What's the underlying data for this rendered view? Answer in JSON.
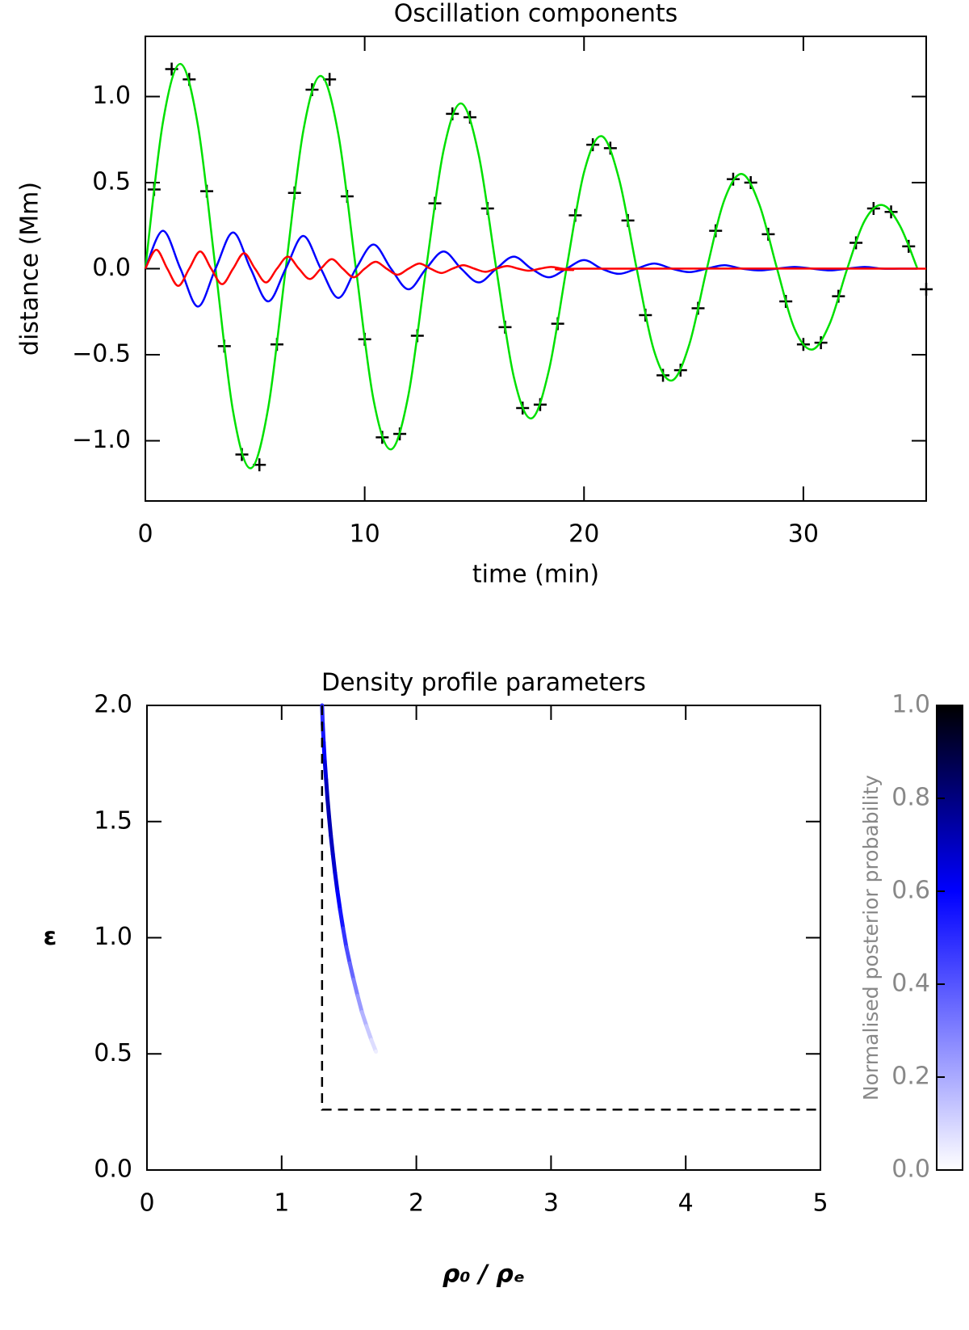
{
  "chart_data": [
    {
      "type": "line",
      "title": "Oscillation components",
      "xlabel": "time (min)",
      "ylabel": "distance (Mm)",
      "xlim": [
        0,
        35.6
      ],
      "ylim": [
        -1.35,
        1.35
      ],
      "xticks": [
        0,
        10,
        20,
        30
      ],
      "yticks": [
        {
          "value": -1.0,
          "label": "−1.0"
        },
        {
          "value": -0.5,
          "label": "−0.5"
        },
        {
          "value": 0,
          "label": "0.0"
        },
        {
          "value": 0.5,
          "label": "0.5"
        },
        {
          "value": 1.0,
          "label": "1.0"
        }
      ],
      "series": [
        {
          "type": "scatter",
          "marker": "+",
          "color": "#000000",
          "x": [
            0.4,
            1.2,
            2.0,
            2.8,
            3.6,
            4.4,
            5.2,
            6.0,
            6.8,
            7.6,
            8.4,
            9.2,
            10.0,
            10.8,
            11.6,
            12.4,
            13.2,
            14.0,
            14.8,
            15.6,
            16.4,
            17.2,
            18.0,
            18.8,
            19.6,
            20.4,
            21.2,
            22.0,
            22.8,
            23.6,
            24.4,
            25.2,
            26.0,
            26.8,
            27.6,
            28.4,
            29.2,
            30.0,
            30.8,
            31.6,
            32.4,
            33.2,
            34.0,
            34.8,
            35.6
          ],
          "values": [
            0.46,
            1.16,
            1.1,
            0.45,
            -0.45,
            -1.08,
            -1.14,
            -0.44,
            0.44,
            1.04,
            1.1,
            0.42,
            -0.41,
            -0.98,
            -0.96,
            -0.39,
            0.38,
            0.9,
            0.88,
            0.35,
            -0.34,
            -0.81,
            -0.79,
            -0.32,
            0.31,
            0.72,
            0.7,
            0.28,
            -0.27,
            -0.62,
            -0.59,
            -0.23,
            0.22,
            0.52,
            0.5,
            0.2,
            -0.19,
            -0.44,
            -0.43,
            -0.16,
            0.15,
            0.35,
            0.33,
            0.13,
            -0.12
          ]
        },
        {
          "type": "line",
          "color": "#00e000",
          "x": [
            0,
            0.8,
            1.6,
            2.4,
            3.2,
            4,
            4.8,
            5.6,
            6.4,
            7.2,
            8,
            8.8,
            9.6,
            10.4,
            11.2,
            12,
            12.8,
            13.6,
            14.4,
            15.2,
            16,
            16.8,
            17.6,
            18.4,
            19.2,
            20,
            20.8,
            21.6,
            22.4,
            23.2,
            24,
            24.8,
            25.6,
            26.4,
            27.2,
            28,
            28.8,
            29.6,
            30.4,
            31.2,
            32,
            32.8,
            33.6,
            34.4,
            35.2
          ],
          "values": [
            0,
            0.85,
            1.19,
            0.83,
            0,
            -0.83,
            -1.16,
            -0.81,
            0,
            0.8,
            1.12,
            0.78,
            0,
            -0.76,
            -1.05,
            -0.73,
            0,
            0.69,
            0.96,
            0.66,
            0,
            -0.63,
            -0.87,
            -0.59,
            0,
            0.56,
            0.77,
            0.52,
            0,
            -0.48,
            -0.65,
            -0.44,
            0,
            0.4,
            0.55,
            0.37,
            0,
            -0.35,
            -0.47,
            -0.32,
            0,
            0.28,
            0.37,
            0.25,
            0
          ]
        },
        {
          "type": "line",
          "color": "#0000ff",
          "x": [
            0,
            0.8,
            1.6,
            2.4,
            3.2,
            4,
            4.8,
            5.6,
            6.4,
            7.2,
            8,
            8.8,
            9.6,
            10.4,
            11.2,
            12,
            12.8,
            13.6,
            14.4,
            15.2,
            16,
            16.8,
            17.6,
            18.4,
            19.2,
            20,
            20.8,
            21.6,
            22.4,
            23.2,
            24,
            24.8,
            25.6,
            26.4,
            27.2,
            28,
            28.8,
            29.6,
            30.4,
            31.2,
            32,
            32.8,
            33.6,
            34.4,
            35.2
          ],
          "values": [
            0,
            0.22,
            0,
            -0.22,
            0,
            0.21,
            0,
            -0.19,
            0,
            0.19,
            0,
            -0.17,
            0,
            0.14,
            0,
            -0.12,
            0,
            0.1,
            0,
            -0.08,
            0,
            0.07,
            0,
            -0.05,
            0,
            0.05,
            0,
            -0.03,
            0,
            0.03,
            0,
            -0.02,
            0,
            0.02,
            0,
            -0.01,
            0,
            0.01,
            0,
            -0.01,
            0,
            0.01,
            0,
            0,
            0
          ]
        },
        {
          "type": "line",
          "color": "#ff0000",
          "x": [
            0,
            0.5,
            1,
            1.5,
            2,
            2.5,
            3,
            3.5,
            4,
            4.5,
            5,
            5.5,
            6,
            6.5,
            7,
            7.5,
            8,
            8.5,
            9,
            9.5,
            10,
            10.5,
            11,
            11.5,
            12,
            12.5,
            13,
            13.5,
            14,
            14.5,
            15,
            15.5,
            16,
            16.5,
            17,
            17.5,
            18,
            18.5,
            19,
            19.5,
            20,
            35.6
          ],
          "values": [
            0,
            0.11,
            0,
            -0.1,
            0,
            0.1,
            0,
            -0.09,
            0,
            0.09,
            0,
            -0.08,
            0,
            0.07,
            0,
            -0.06,
            0,
            0.055,
            0,
            -0.05,
            0,
            0.04,
            0,
            -0.035,
            0,
            0.03,
            0,
            -0.025,
            0,
            0.02,
            0,
            -0.018,
            0,
            0.015,
            0,
            -0.012,
            0,
            0.01,
            0,
            -0.008,
            0,
            0
          ]
        }
      ]
    },
    {
      "type": "density",
      "title": "Density profile parameters",
      "xlabel": "ρ₀ / ρₑ",
      "ylabel": "ε",
      "xlim": [
        0,
        5
      ],
      "ylim": [
        0,
        2
      ],
      "xticks": [
        0,
        1,
        2,
        3,
        4,
        5
      ],
      "yticks": [
        {
          "value": 0,
          "label": "0.0"
        },
        {
          "value": 0.5,
          "label": "0.5"
        },
        {
          "value": 1.0,
          "label": "1.0"
        },
        {
          "value": 1.5,
          "label": "1.5"
        },
        {
          "value": 2.0,
          "label": "2.0"
        }
      ],
      "ridge": {
        "x": [
          1.3,
          1.305,
          1.312,
          1.32,
          1.33,
          1.34,
          1.352,
          1.365,
          1.38,
          1.396,
          1.414,
          1.434,
          1.456,
          1.48,
          1.506,
          1.534,
          1.564,
          1.596,
          1.63,
          1.666,
          1.7
        ],
        "y": [
          2.0,
          1.92,
          1.84,
          1.76,
          1.68,
          1.6,
          1.52,
          1.44,
          1.36,
          1.28,
          1.2,
          1.12,
          1.04,
          0.96,
          0.89,
          0.82,
          0.75,
          0.68,
          0.62,
          0.56,
          0.51
        ],
        "probability": [
          0.5,
          0.55,
          0.6,
          0.65,
          0.7,
          0.72,
          0.72,
          0.7,
          0.68,
          0.65,
          0.6,
          0.55,
          0.48,
          0.42,
          0.36,
          0.3,
          0.24,
          0.18,
          0.13,
          0.08,
          0.04
        ]
      },
      "boundary": {
        "x": [
          1.3,
          1.3,
          5.0
        ],
        "y": [
          2.0,
          0.26,
          0.26
        ],
        "color": "#000000"
      },
      "colorbar": {
        "label": "Normalised posterior probability",
        "lim": [
          0,
          1
        ],
        "ticks": [
          {
            "value": 0,
            "label": "0.0"
          },
          {
            "value": 0.2,
            "label": "0.2"
          },
          {
            "value": 0.4,
            "label": "0.4"
          },
          {
            "value": 0.6,
            "label": "0.6"
          },
          {
            "value": 0.8,
            "label": "0.8"
          },
          {
            "value": 1.0,
            "label": "1.0"
          }
        ],
        "colormap": {
          "stops": [
            0,
            0.6,
            1
          ],
          "colors": [
            "#ffffff",
            "#0000ff",
            "#000000"
          ]
        }
      }
    }
  ]
}
